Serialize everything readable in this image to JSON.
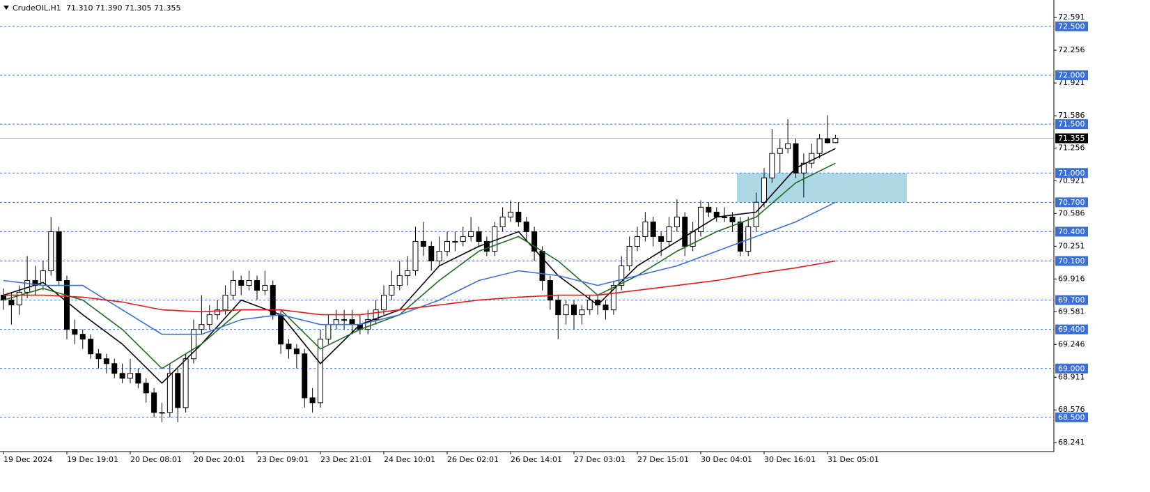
{
  "chart_data": {
    "type": "candlestick",
    "title": "CrudeOIL,H1",
    "subtitle": "71.310 71.390 71.305 71.355",
    "categories": [
      "19 Dec 2024",
      null,
      null,
      null,
      null,
      null,
      null,
      null,
      "19 Dec 19:01",
      null,
      null,
      null,
      null,
      null,
      null,
      null,
      "20 Dec 08:01",
      null,
      null,
      null,
      null,
      null,
      null,
      null,
      "20 Dec 20:01",
      null,
      null,
      null,
      null,
      null,
      null,
      null,
      "23 Dec 09:01",
      null,
      null,
      null,
      null,
      null,
      null,
      null,
      "23 Dec 21:01",
      null,
      null,
      null,
      null,
      null,
      null,
      null,
      "24 Dec 10:01",
      null,
      null,
      null,
      null,
      null,
      null,
      null,
      "26 Dec 02:01",
      null,
      null,
      null,
      null,
      null,
      null,
      null,
      "26 Dec 14:01",
      null,
      null,
      null,
      null,
      null,
      null,
      null,
      "27 Dec 03:01",
      null,
      null,
      null,
      null,
      null,
      null,
      null,
      "27 Dec 15:01",
      null,
      null,
      null,
      null,
      null,
      null,
      null,
      "30 Dec 04:01",
      null,
      null,
      null,
      null,
      null,
      null,
      null,
      "30 Dec 16:01",
      null,
      null,
      null,
      null,
      null,
      null,
      null,
      "31 Dec 05:01",
      null
    ],
    "open": [
      69.75,
      69.7,
      69.65,
      69.78,
      69.9,
      69.85,
      70.0,
      70.4,
      69.9,
      69.4,
      69.35,
      69.3,
      69.15,
      69.1,
      69.05,
      68.95,
      68.9,
      68.95,
      68.85,
      68.75,
      68.55,
      68.55,
      68.95,
      68.6,
      69.1,
      69.4,
      69.45,
      69.55,
      69.6,
      69.75,
      69.9,
      69.85,
      69.9,
      69.8,
      69.85,
      69.55,
      69.25,
      69.2,
      69.15,
      68.7,
      68.65,
      69.3,
      69.45,
      69.5,
      69.5,
      69.45,
      69.4,
      69.5,
      69.6,
      69.75,
      69.85,
      69.95,
      70.0,
      70.3,
      70.25,
      70.1,
      70.2,
      70.3,
      70.3,
      70.35,
      70.4,
      70.3,
      70.2,
      70.45,
      70.55,
      70.6,
      70.5,
      70.4,
      70.2,
      69.9,
      69.7,
      69.55,
      69.65,
      69.55,
      69.6,
      69.7,
      69.65,
      69.6,
      69.85,
      70.05,
      70.25,
      70.35,
      70.5,
      70.35,
      70.3,
      70.45,
      70.55,
      70.25,
      70.4,
      70.65,
      70.6,
      70.55,
      70.55,
      70.5,
      70.2,
      70.45,
      70.7,
      70.95,
      71.2,
      71.25,
      71.3,
      71.0,
      71.1,
      71.2,
      71.35,
      71.31
    ],
    "high": [
      69.82,
      69.78,
      69.85,
      70.15,
      70.05,
      70.1,
      70.55,
      70.45,
      69.95,
      69.5,
      69.4,
      69.35,
      69.2,
      69.15,
      69.1,
      69.05,
      69.1,
      69.0,
      68.9,
      68.8,
      68.65,
      69.05,
      69.0,
      69.15,
      69.5,
      69.75,
      69.65,
      69.7,
      69.85,
      70.0,
      69.95,
      70.0,
      69.95,
      70.0,
      69.9,
      69.6,
      69.3,
      69.25,
      69.2,
      68.8,
      69.4,
      69.55,
      69.6,
      69.6,
      69.6,
      69.55,
      69.6,
      69.7,
      69.85,
      70.0,
      70.1,
      70.15,
      70.45,
      70.5,
      70.3,
      70.35,
      70.4,
      70.4,
      70.45,
      70.55,
      70.45,
      70.35,
      70.5,
      70.65,
      70.72,
      70.7,
      70.55,
      70.45,
      70.25,
      69.95,
      69.75,
      69.7,
      69.7,
      69.65,
      69.75,
      69.75,
      69.7,
      69.9,
      70.15,
      70.35,
      70.45,
      70.6,
      70.55,
      70.4,
      70.55,
      70.73,
      70.6,
      70.5,
      70.72,
      70.7,
      70.65,
      70.65,
      70.6,
      70.55,
      70.55,
      70.8,
      71.05,
      71.45,
      71.35,
      71.55,
      71.35,
      71.2,
      71.3,
      71.4,
      71.59,
      71.39
    ],
    "low": [
      69.6,
      69.45,
      69.55,
      69.72,
      69.75,
      69.8,
      69.95,
      69.85,
      69.3,
      69.25,
      69.2,
      69.1,
      69.0,
      68.95,
      68.9,
      68.85,
      68.85,
      68.8,
      68.65,
      68.5,
      68.45,
      68.5,
      68.45,
      68.55,
      69.05,
      69.35,
      69.4,
      69.5,
      69.55,
      69.7,
      69.75,
      69.8,
      69.7,
      69.75,
      69.5,
      69.15,
      69.1,
      69.0,
      68.6,
      68.55,
      68.6,
      69.25,
      69.4,
      69.4,
      69.35,
      69.35,
      69.35,
      69.45,
      69.55,
      69.7,
      69.8,
      69.85,
      69.95,
      70.15,
      70.0,
      70.05,
      70.15,
      70.2,
      70.25,
      70.3,
      70.25,
      70.15,
      70.15,
      70.4,
      70.5,
      70.45,
      70.3,
      70.1,
      69.8,
      69.6,
      69.3,
      69.45,
      69.4,
      69.45,
      69.55,
      69.55,
      69.5,
      69.55,
      69.8,
      70.0,
      70.2,
      70.3,
      70.25,
      70.15,
      70.25,
      70.4,
      70.15,
      70.2,
      70.35,
      70.55,
      70.5,
      70.5,
      70.4,
      70.15,
      70.15,
      70.4,
      70.65,
      70.9,
      71.0,
      71.2,
      70.95,
      70.75,
      71.05,
      71.15,
      71.3,
      71.305
    ],
    "close": [
      69.7,
      69.65,
      69.78,
      69.9,
      69.85,
      70.0,
      70.4,
      69.9,
      69.4,
      69.35,
      69.3,
      69.15,
      69.1,
      69.05,
      68.95,
      68.9,
      68.95,
      68.85,
      68.75,
      68.55,
      68.55,
      68.95,
      68.6,
      69.1,
      69.4,
      69.45,
      69.55,
      69.6,
      69.75,
      69.9,
      69.85,
      69.9,
      69.8,
      69.85,
      69.55,
      69.25,
      69.2,
      69.15,
      68.7,
      68.65,
      69.3,
      69.45,
      69.5,
      69.5,
      69.45,
      69.4,
      69.5,
      69.6,
      69.75,
      69.85,
      69.95,
      70.0,
      70.3,
      70.25,
      70.1,
      70.2,
      70.3,
      70.3,
      70.35,
      70.4,
      70.3,
      70.2,
      70.45,
      70.55,
      70.6,
      70.5,
      70.4,
      70.2,
      69.9,
      69.7,
      69.55,
      69.65,
      69.55,
      69.6,
      69.7,
      69.65,
      69.6,
      69.85,
      70.05,
      70.25,
      70.35,
      70.5,
      70.35,
      70.3,
      70.45,
      70.55,
      70.25,
      70.4,
      70.65,
      70.6,
      70.55,
      70.55,
      70.5,
      70.2,
      70.45,
      70.7,
      70.95,
      71.2,
      71.25,
      71.3,
      71.0,
      71.1,
      71.2,
      71.35,
      71.31,
      71.355
    ],
    "line_x": [
      0,
      5,
      10,
      15,
      20,
      25,
      30,
      35,
      40,
      45,
      50,
      55,
      60,
      65,
      70,
      75,
      80,
      85,
      90,
      95,
      100,
      105
    ],
    "lines": [
      {
        "color": "#000000",
        "values": [
          69.75,
          69.88,
          69.55,
          69.25,
          68.85,
          69.25,
          69.7,
          69.55,
          69.05,
          69.45,
          69.6,
          70.05,
          70.25,
          70.4,
          69.95,
          69.65,
          70.05,
          70.3,
          70.55,
          70.6,
          71.05,
          71.25
        ]
      },
      {
        "color": "#1e6b1e",
        "values": [
          69.7,
          69.82,
          69.7,
          69.4,
          69.0,
          69.25,
          69.6,
          69.6,
          69.2,
          69.4,
          69.55,
          69.9,
          70.2,
          70.35,
          70.1,
          69.75,
          69.95,
          70.2,
          70.4,
          70.55,
          70.9,
          71.1
        ]
      },
      {
        "color": "#3a6fd8",
        "values": [
          69.9,
          69.85,
          69.85,
          69.6,
          69.35,
          69.35,
          69.5,
          69.55,
          69.45,
          69.45,
          69.55,
          69.7,
          69.9,
          70.0,
          69.95,
          69.85,
          69.95,
          70.05,
          70.2,
          70.35,
          70.5,
          70.7
        ]
      },
      {
        "color": "#e31a1c",
        "values": [
          69.75,
          69.75,
          69.73,
          69.68,
          69.6,
          69.58,
          69.6,
          69.6,
          69.55,
          69.55,
          69.6,
          69.65,
          69.7,
          69.73,
          69.75,
          69.75,
          69.8,
          69.85,
          69.9,
          69.97,
          70.03,
          70.1
        ]
      }
    ],
    "ylim": [
      68.15,
      72.77
    ],
    "yticks": [
      72.591,
      72.256,
      71.921,
      71.586,
      71.256,
      70.921,
      70.586,
      70.251,
      69.916,
      69.581,
      69.246,
      68.911,
      68.576,
      68.241
    ],
    "levels": [
      {
        "value": 72.5,
        "label": "72.500"
      },
      {
        "value": 72.0,
        "label": "72.000"
      },
      {
        "value": 71.5,
        "label": "71.500"
      },
      {
        "value": 71.0,
        "label": "71.000"
      },
      {
        "value": 70.7,
        "label": "70.700"
      },
      {
        "value": 70.4,
        "label": "70.400"
      },
      {
        "value": 70.1,
        "label": "70.100"
      },
      {
        "value": 69.7,
        "label": "69.700"
      },
      {
        "value": 69.4,
        "label": "69.400"
      },
      {
        "value": 69.0,
        "label": "69.000"
      },
      {
        "value": 68.5,
        "label": "68.500"
      }
    ],
    "level_color": "#3a6fd8",
    "zone_color": "#add8e6",
    "current_price": 71.355
  }
}
